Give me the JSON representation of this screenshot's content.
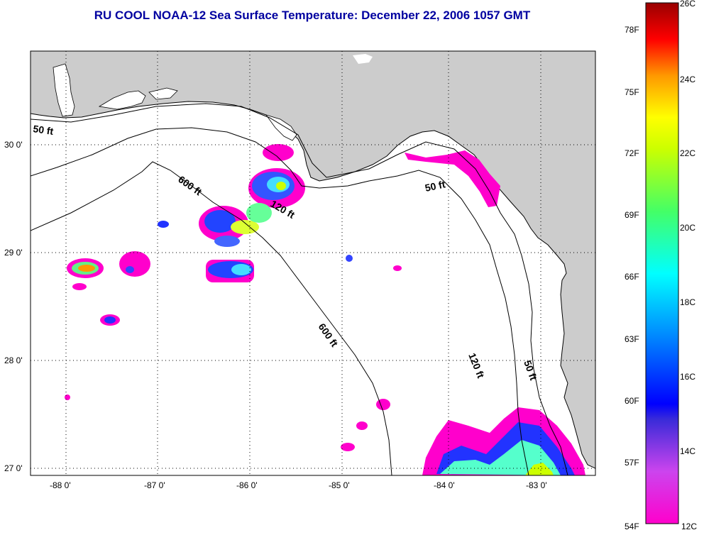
{
  "title": "RU COOL  NOAA-12  Sea Surface Temperature:  December 22, 2006 1057 GMT",
  "latitude_labels": [
    "30 0'",
    "29 0'",
    "28 0'",
    "27 0'"
  ],
  "longitude_labels": [
    "-88 0'",
    "-87 0'",
    "-86 0'",
    "-85 0'",
    "-84 0'",
    "-83 0'"
  ],
  "contours": {
    "label_50": "50 ft",
    "label_120": "120 ft",
    "label_600": "600 ft"
  },
  "colorbar": {
    "celsius_labels": [
      "26C",
      "24C",
      "22C",
      "20C",
      "18C",
      "16C",
      "14C",
      "12C"
    ],
    "fahrenheit_labels": [
      "78F",
      "75F",
      "72F",
      "69F",
      "66F",
      "63F",
      "60F",
      "57F",
      "54F"
    ]
  },
  "colors": {
    "title": "#0000a0",
    "land": "#cccccc",
    "ocean": "#ffffff"
  }
}
